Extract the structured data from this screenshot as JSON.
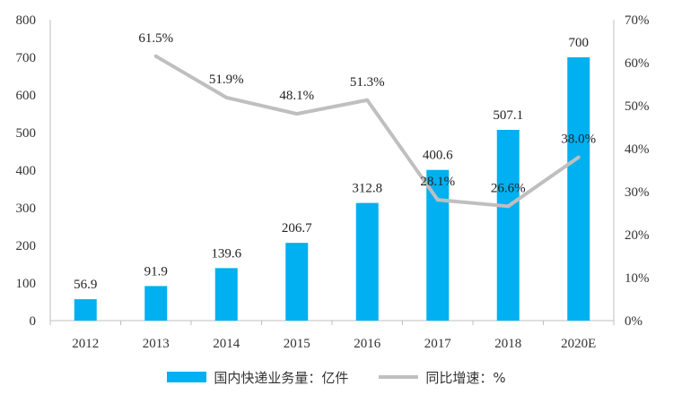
{
  "chart_data": {
    "type": "bar+line",
    "categories": [
      "2012",
      "2013",
      "2014",
      "2015",
      "2016",
      "2017",
      "2018",
      "2020E"
    ],
    "series": [
      {
        "name": "国内快递业务量：亿件",
        "type": "bar",
        "axis": "left",
        "color": "#00B0F0",
        "values": [
          56.9,
          91.9,
          139.6,
          206.7,
          312.8,
          400.6,
          507.1,
          700
        ],
        "labels": [
          "56.9",
          "91.9",
          "139.6",
          "206.7",
          "312.8",
          "400.6",
          "507.1",
          "700"
        ]
      },
      {
        "name": "同比增速：%",
        "type": "line",
        "axis": "right",
        "color": "#BFBFBF",
        "values": [
          null,
          61.5,
          51.9,
          48.1,
          51.3,
          28.1,
          26.6,
          38.0
        ],
        "labels": [
          "",
          "61.5%",
          "51.9%",
          "48.1%",
          "51.3%",
          "28.1%",
          "26.6%",
          "38.0%"
        ]
      }
    ],
    "y_left": {
      "min": 0,
      "max": 800,
      "step": 100,
      "ticks": [
        "0",
        "100",
        "200",
        "300",
        "400",
        "500",
        "600",
        "700",
        "800"
      ]
    },
    "y_right": {
      "min": 0,
      "max": 70,
      "step": 10,
      "ticks": [
        "0%",
        "10%",
        "20%",
        "30%",
        "40%",
        "50%",
        "60%",
        "70%"
      ]
    },
    "grid": false,
    "legend_position": "bottom"
  }
}
